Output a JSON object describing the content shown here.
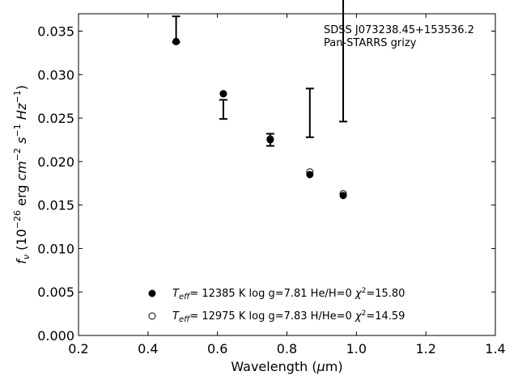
{
  "chart_data": {
    "type": "scatter",
    "xlabel": "Wavelength (μm)",
    "xlabel_parts": {
      "pre": "Wavelength (",
      "mu": "μ",
      "post": "m)"
    },
    "ylabel": "f_ν (10^−26 erg cm^−2 s^−1 Hz^−1)",
    "xlim": [
      0.2,
      1.4
    ],
    "ylim": [
      0.0,
      0.037
    ],
    "x_ticks": [
      "0.2",
      "0.4",
      "0.6",
      "0.8",
      "1.0",
      "1.2",
      "1.4"
    ],
    "y_ticks": [
      "0.000",
      "0.005",
      "0.010",
      "0.015",
      "0.020",
      "0.025",
      "0.030",
      "0.035"
    ],
    "annotations": [
      "SDSS J073238.45+153536.2",
      "Pan-STARRS grizy"
    ],
    "observed": {
      "x": [
        0.481,
        0.617,
        0.752,
        0.866,
        0.962
      ],
      "y": [
        0.0352,
        0.026,
        0.0225,
        0.0256,
        0.0332
      ],
      "yerr": [
        0.0015,
        0.0011,
        0.0007,
        0.0028,
        0.0086
      ]
    },
    "series": [
      {
        "name": "T_eff= 12385 K  log g=7.81  He/H=0  χ²=15.80",
        "marker": "filled",
        "x": [
          0.481,
          0.617,
          0.752,
          0.866,
          0.962
        ],
        "y": [
          0.0338,
          0.0278,
          0.0225,
          0.0185,
          0.0161
        ]
      },
      {
        "name": "T_eff= 12975 K  log g=7.83  H/He=0  χ²=14.59",
        "marker": "open",
        "x": [
          0.481,
          0.617,
          0.752,
          0.866,
          0.962
        ],
        "y": [
          0.0338,
          0.0278,
          0.0226,
          0.0188,
          0.0163
        ]
      }
    ],
    "legend": [
      {
        "marker": "filled",
        "teff": "= 12385 K  log g=7.81  He/H=0  ",
        "chi": "=15.80"
      },
      {
        "marker": "open",
        "teff": "= 12975 K  log g=7.83  H/He=0  ",
        "chi": "=14.59"
      }
    ],
    "legend_placement": "lower-center",
    "grid": false
  }
}
